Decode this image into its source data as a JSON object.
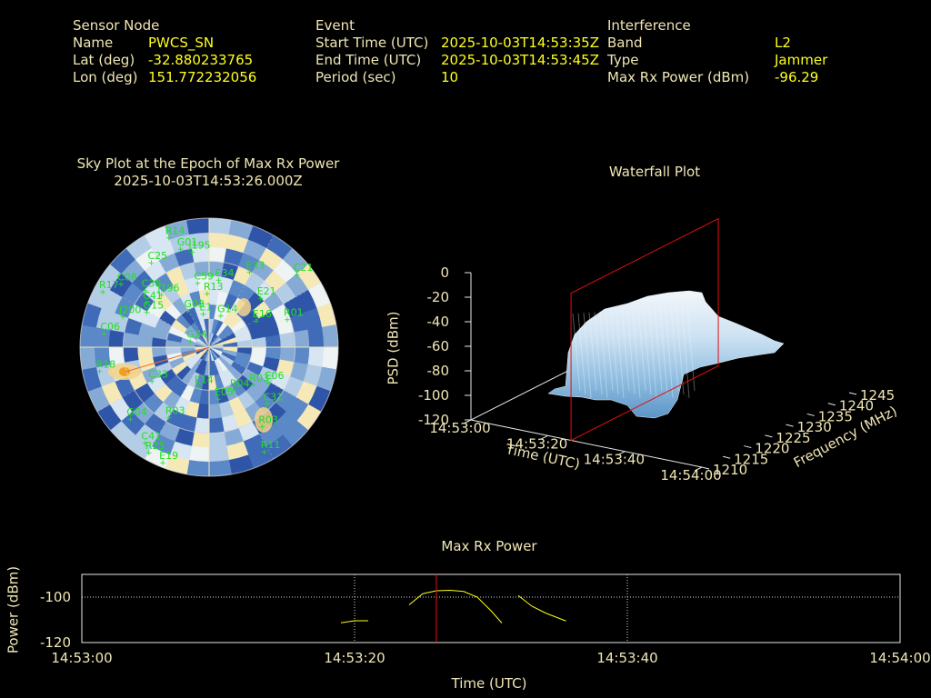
{
  "header": {
    "sensor": {
      "title": "Sensor Node",
      "rows": [
        {
          "label": "Name",
          "value": "PWCS_SN"
        },
        {
          "label": "Lat (deg)",
          "value": "-32.880233765"
        },
        {
          "label": "Lon (deg)",
          "value": "151.772232056"
        }
      ]
    },
    "event": {
      "title": "Event",
      "rows": [
        {
          "label": "Start Time (UTC)",
          "value": "2025-10-03T14:53:35Z"
        },
        {
          "label": "End Time (UTC)",
          "value": "2025-10-03T14:53:45Z"
        },
        {
          "label": "Period (sec)",
          "value": "10"
        }
      ]
    },
    "interference": {
      "title": "Interference",
      "rows": [
        {
          "label": "Band",
          "value": "L2"
        },
        {
          "label": "Type",
          "value": "Jammer"
        },
        {
          "label": "Max Rx Power (dBm)",
          "value": "-96.29"
        }
      ]
    }
  },
  "colors": {
    "label": "#f0e6b4",
    "value": "#ffff1e",
    "satellite": "#20e020",
    "marker": "#e01010",
    "sky_low": "#3a5fb0",
    "sky_high": "#f5e6b0"
  },
  "chart_data": [
    {
      "type": "scatter",
      "title": "Sky Plot at the Epoch of Max Rx Power",
      "subtitle": "2025-10-03T14:53:26.000Z",
      "projection": "polar",
      "satellites": [
        {
          "id": "R14",
          "az": 340,
          "el": 8
        },
        {
          "id": "G01",
          "az": 344,
          "el": 18
        },
        {
          "id": "J195",
          "az": 350,
          "el": 22
        },
        {
          "id": "C25",
          "az": 326,
          "el": 18
        },
        {
          "id": "C08",
          "az": 306,
          "el": 14
        },
        {
          "id": "R17",
          "az": 298,
          "el": 6
        },
        {
          "id": "C38",
          "az": 312,
          "el": 30
        },
        {
          "id": "J196",
          "az": 318,
          "el": 40
        },
        {
          "id": "C59",
          "az": 350,
          "el": 44
        },
        {
          "id": "E34",
          "az": 8,
          "el": 42
        },
        {
          "id": "R13",
          "az": 358,
          "el": 52
        },
        {
          "id": "E33",
          "az": 28,
          "el": 30
        },
        {
          "id": "C21",
          "az": 50,
          "el": 10
        },
        {
          "id": "E21",
          "az": 46,
          "el": 40
        },
        {
          "id": "E16",
          "az": 60,
          "el": 52
        },
        {
          "id": "R01",
          "az": 70,
          "el": 32
        },
        {
          "id": "G03",
          "az": 330,
          "el": 60
        },
        {
          "id": "E1",
          "az": 350,
          "el": 66
        },
        {
          "id": "G14",
          "az": 20,
          "el": 66
        },
        {
          "id": "G15",
          "az": 300,
          "el": 40
        },
        {
          "id": "J200",
          "az": 290,
          "el": 26
        },
        {
          "id": "C06",
          "az": 278,
          "el": 16
        },
        {
          "id": "C41",
          "az": 306,
          "el": 36
        },
        {
          "id": "G24",
          "az": 290,
          "el": 76
        },
        {
          "id": "R18",
          "az": 258,
          "el": 12
        },
        {
          "id": "C33",
          "az": 240,
          "el": 44
        },
        {
          "id": "G04",
          "az": 228,
          "el": 16
        },
        {
          "id": "C41",
          "az": 214,
          "el": 10
        },
        {
          "id": "R25",
          "az": 210,
          "el": 6
        },
        {
          "id": "E19",
          "az": 202,
          "el": 4
        },
        {
          "id": "R03",
          "az": 210,
          "el": 34
        },
        {
          "id": "E05",
          "az": 170,
          "el": 54
        },
        {
          "id": "E14",
          "az": 196,
          "el": 62
        },
        {
          "id": "R04",
          "az": 150,
          "el": 56
        },
        {
          "id": "R03",
          "az": 130,
          "el": 50
        },
        {
          "id": "E06",
          "az": 120,
          "el": 42
        },
        {
          "id": "C31",
          "az": 134,
          "el": 34
        },
        {
          "id": "R03",
          "az": 146,
          "el": 24
        },
        {
          "id": "R11",
          "az": 152,
          "el": 8
        }
      ]
    },
    {
      "type": "area",
      "title": "Waterfall Plot",
      "xlabel": "Time (UTC)",
      "ylabel": "Frequency (MHz)",
      "zlabel": "PSD (dBm)",
      "x_ticks": [
        "14:53:00",
        "14:53:20",
        "14:53:40",
        "14:54:00"
      ],
      "y_ticks": [
        "1210",
        "1215",
        "1220",
        "1225",
        "1230",
        "1235",
        "1240",
        "1245"
      ],
      "z_ticks": [
        "0",
        "-20",
        "-40",
        "-60",
        "-80",
        "-100",
        "-120"
      ],
      "zlim": [
        -120,
        0
      ],
      "marker_time": "14:53:26"
    },
    {
      "type": "line",
      "title": "Max Rx Power",
      "xlabel": "Time (UTC)",
      "ylabel": "Power (dBm)",
      "x_ticks": [
        "14:53:00",
        "14:53:20",
        "14:53:40",
        "14:54:00"
      ],
      "y_ticks": [
        "-100",
        "-120"
      ],
      "xlim_sec": [
        0,
        60
      ],
      "ylim": [
        -120,
        -90
      ],
      "grid": true,
      "marker_sec": 26,
      "segments": [
        [
          [
            19,
            -111.3
          ],
          [
            20,
            -110.4
          ],
          [
            21,
            -110.4
          ]
        ],
        [
          [
            24,
            -103.4
          ],
          [
            25,
            -98.5
          ],
          [
            26,
            -97.2
          ],
          [
            27,
            -97.0
          ],
          [
            28,
            -97.5
          ],
          [
            29,
            -100.0
          ],
          [
            30,
            -106.0
          ],
          [
            30.8,
            -111.4
          ]
        ],
        [
          [
            32,
            -99.3
          ],
          [
            33,
            -104.0
          ],
          [
            34,
            -107.0
          ],
          [
            35.5,
            -110.5
          ]
        ]
      ]
    }
  ]
}
